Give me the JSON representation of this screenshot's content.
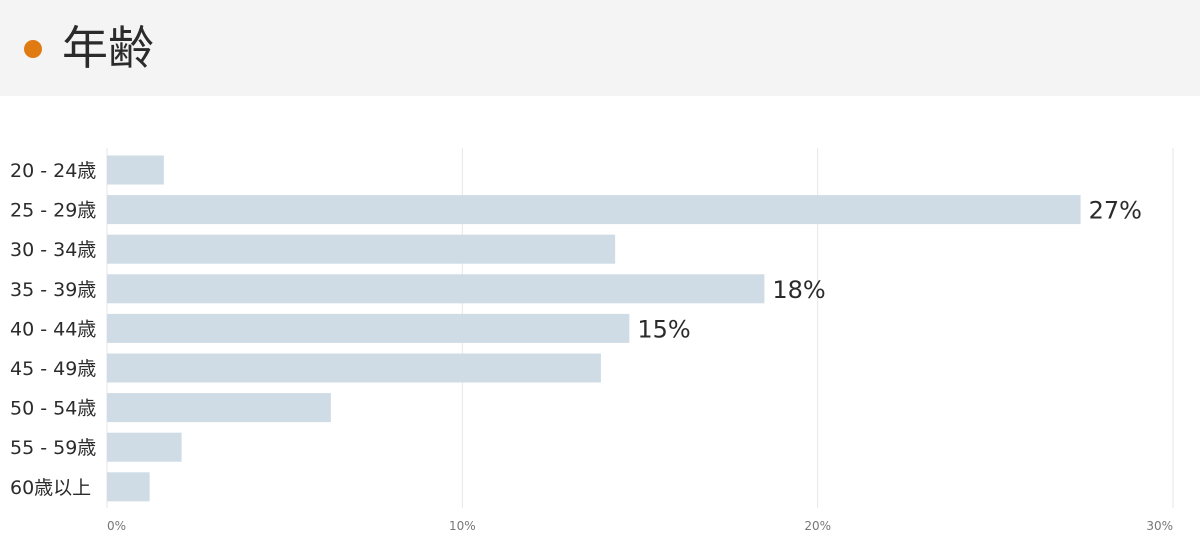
{
  "header": {
    "title": "年齢",
    "dot_color": "#e07b14"
  },
  "chart_data": {
    "type": "bar",
    "orientation": "horizontal",
    "categories": [
      "20 - 24歳",
      "25 - 29歳",
      "30 - 34歳",
      "35 - 39歳",
      "40 - 44歳",
      "45 - 49歳",
      "50 - 54歳",
      "55 - 59歳",
      "60歳以上"
    ],
    "values": [
      1.6,
      27.4,
      14.3,
      18.5,
      14.7,
      13.9,
      6.3,
      2.1,
      1.2
    ],
    "data_labels": [
      "",
      "27%",
      "",
      "18%",
      "15%",
      "",
      "",
      "",
      ""
    ],
    "xlim": [
      0,
      30
    ],
    "xticks": [
      0,
      10,
      20,
      30
    ],
    "xtick_labels": [
      "0%",
      "10%",
      "20%",
      "30%"
    ],
    "grid": true,
    "bar_color": "#cfdce5",
    "grid_color": "#e6e6e6"
  }
}
